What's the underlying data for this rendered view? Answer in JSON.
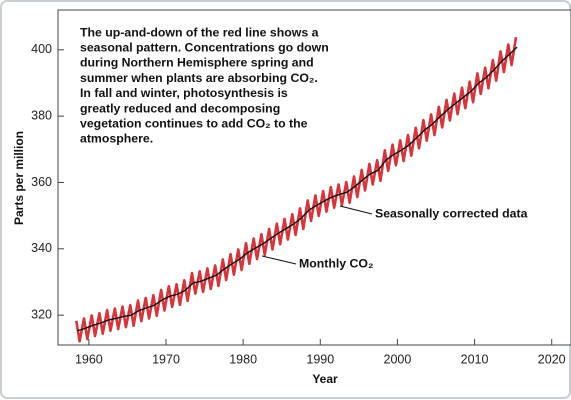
{
  "chart_data": {
    "type": "line",
    "xlabel": "Year",
    "ylabel": "Parts per million",
    "xlim": [
      1956,
      2022.5
    ],
    "xticks": [
      1960,
      1970,
      1980,
      1990,
      2000,
      2010,
      2020
    ],
    "ylim": [
      311,
      412
    ],
    "yticks": [
      320,
      340,
      360,
      380,
      400
    ],
    "annotation": [
      "The up-and-down of the red line shows a",
      "seasonal pattern. Concentrations go down",
      "during Northern Hemisphere spring and",
      "summer when plants are absorbing CO₂.",
      "In fall and winter, photosynthesis is",
      "greatly reduced and decomposing",
      "vegetation continues to add CO₂ to the",
      "atmosphere."
    ],
    "series": [
      {
        "name": "Monthly CO₂",
        "color": "#d8343a",
        "x": [
          1958.37,
          1958.8,
          1959.37,
          1959.8,
          1960.37,
          1960.8,
          1961.37,
          1961.8,
          1962.37,
          1962.8,
          1963.37,
          1963.8,
          1964.37,
          1964.8,
          1965.37,
          1965.8,
          1966.37,
          1966.8,
          1967.37,
          1967.8,
          1968.37,
          1968.8,
          1969.37,
          1969.8,
          1970.37,
          1970.8,
          1971.37,
          1971.8,
          1972.37,
          1972.8,
          1973.37,
          1973.8,
          1974.37,
          1974.8,
          1975.37,
          1975.8,
          1976.37,
          1976.8,
          1977.37,
          1977.8,
          1978.37,
          1978.8,
          1979.37,
          1979.8,
          1980.37,
          1980.8,
          1981.37,
          1981.8,
          1982.37,
          1982.8,
          1983.37,
          1983.8,
          1984.37,
          1984.8,
          1985.37,
          1985.8,
          1986.37,
          1986.8,
          1987.37,
          1987.8,
          1988.37,
          1988.8,
          1989.37,
          1989.8,
          1990.37,
          1990.8,
          1991.37,
          1991.8,
          1992.37,
          1992.8,
          1993.37,
          1993.8,
          1994.37,
          1994.8,
          1995.37,
          1995.8,
          1996.37,
          1996.8,
          1997.37,
          1997.8,
          1998.37,
          1998.8,
          1999.37,
          1999.8,
          2000.37,
          2000.8,
          2001.37,
          2001.8,
          2002.37,
          2002.8,
          2003.37,
          2003.8,
          2004.37,
          2004.8,
          2005.37,
          2005.8,
          2006.37,
          2006.8,
          2007.37,
          2007.8,
          2008.37,
          2008.8,
          2009.37,
          2009.8,
          2010.37,
          2010.8,
          2011.37,
          2011.8,
          2012.37,
          2012.8,
          2013.37,
          2013.8,
          2014.37,
          2014.8,
          2015.37
        ],
        "values": [
          318.3,
          312.1,
          319.0,
          312.8,
          319.9,
          313.7,
          320.6,
          314.4,
          321.5,
          315.3,
          322.0,
          315.8,
          322.6,
          316.4,
          323.0,
          316.8,
          324.4,
          318.2,
          325.2,
          319.0,
          326.0,
          319.8,
          327.6,
          321.4,
          328.7,
          322.5,
          329.3,
          323.1,
          330.5,
          324.3,
          332.7,
          326.5,
          333.2,
          327.0,
          334.1,
          327.9,
          335.0,
          328.8,
          336.8,
          330.6,
          338.4,
          332.2,
          339.8,
          333.6,
          341.7,
          335.5,
          343.1,
          336.9,
          344.4,
          338.2,
          346.0,
          339.8,
          347.6,
          341.4,
          349.0,
          342.8,
          350.4,
          344.2,
          352.2,
          346.0,
          354.6,
          348.4,
          356.1,
          349.9,
          357.4,
          351.2,
          358.6,
          352.4,
          359.4,
          353.2,
          360.1,
          353.9,
          361.8,
          355.6,
          363.8,
          357.6,
          365.6,
          359.4,
          366.7,
          360.5,
          369.7,
          363.5,
          371.4,
          365.2,
          372.7,
          366.5,
          374.3,
          368.1,
          376.5,
          370.3,
          378.8,
          372.6,
          380.5,
          374.3,
          382.8,
          376.6,
          384.9,
          378.7,
          386.8,
          380.6,
          388.6,
          382.4,
          390.4,
          384.2,
          392.9,
          386.7,
          394.6,
          388.4,
          396.9,
          390.7,
          399.5,
          393.3,
          401.6,
          395.4,
          403.8
        ]
      },
      {
        "name": "Seasonally corrected data",
        "color": "#111111",
        "x": [
          1958.5,
          1959.5,
          1960.5,
          1961.5,
          1962.5,
          1963.5,
          1964.5,
          1965.5,
          1966.5,
          1967.5,
          1968.5,
          1969.5,
          1970.5,
          1971.5,
          1972.5,
          1973.5,
          1974.5,
          1975.5,
          1976.5,
          1977.5,
          1978.5,
          1979.5,
          1980.5,
          1981.5,
          1982.5,
          1983.5,
          1984.5,
          1985.5,
          1986.5,
          1987.5,
          1988.5,
          1989.5,
          1990.5,
          1991.5,
          1992.5,
          1993.5,
          1994.5,
          1995.5,
          1996.5,
          1997.5,
          1998.5,
          1999.5,
          2000.5,
          2001.5,
          2002.5,
          2003.5,
          2004.5,
          2005.5,
          2006.5,
          2007.5,
          2008.5,
          2009.5,
          2010.5,
          2011.5,
          2012.5,
          2013.5,
          2014.5,
          2015.5
        ],
        "values": [
          315.3,
          316.0,
          316.9,
          317.6,
          318.5,
          319.0,
          319.6,
          320.0,
          321.4,
          322.2,
          323.0,
          324.6,
          325.7,
          326.3,
          327.5,
          329.7,
          330.2,
          331.1,
          332.0,
          333.8,
          335.4,
          336.8,
          338.7,
          340.1,
          341.4,
          343.0,
          344.6,
          346.0,
          347.4,
          349.2,
          351.6,
          353.1,
          354.4,
          355.6,
          356.4,
          357.1,
          358.8,
          360.8,
          362.6,
          363.7,
          366.7,
          368.4,
          369.7,
          371.3,
          373.5,
          375.8,
          377.5,
          379.8,
          381.9,
          383.8,
          385.6,
          387.4,
          389.9,
          391.6,
          393.9,
          396.5,
          398.6,
          400.8
        ]
      }
    ]
  }
}
